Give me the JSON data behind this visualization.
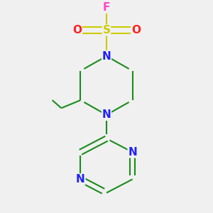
{
  "background_color": "#F0F0F0",
  "bond_color": "#1a8c1a",
  "nitrogen_color": "#2020FF",
  "oxygen_color": "#FF2020",
  "sulfur_color": "#CCCC00",
  "fluorine_color": "#FF44CC",
  "carbon_color": "#1a8c1a",
  "line_width": 1.5,
  "font_size": 11,
  "figsize": [
    3.0,
    3.0
  ],
  "dpi": 100,
  "xlim": [
    0.15,
    0.85
  ],
  "ylim": [
    0.05,
    0.98
  ]
}
